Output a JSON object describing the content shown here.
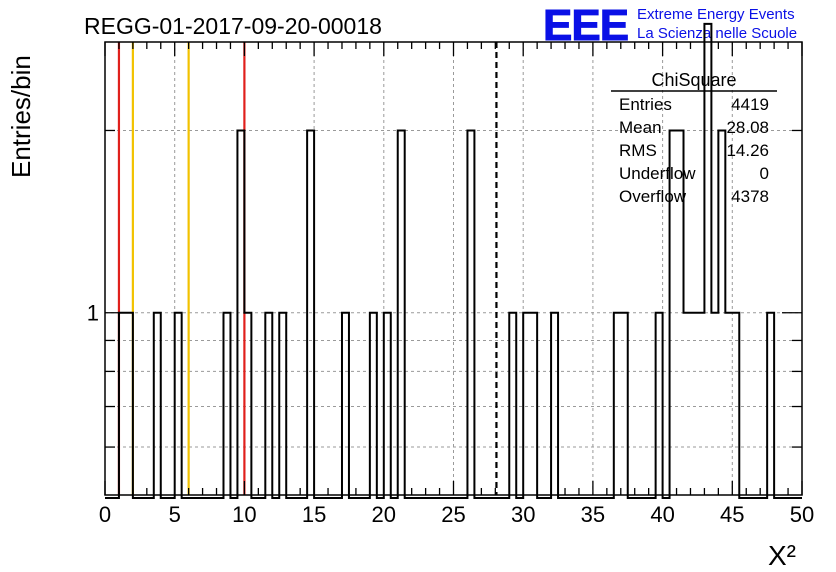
{
  "chart_data": {
    "type": "histogram",
    "title": "REGG-01-2017-09-20-00018",
    "xlabel": "X²",
    "ylabel": "Entries/bin",
    "xlim": [
      0,
      50
    ],
    "x_ticks": [
      0,
      5,
      10,
      15,
      20,
      25,
      30,
      35,
      40,
      45,
      50
    ],
    "y_scale": "log",
    "ylim": [
      0.5,
      2.8
    ],
    "y_tick_labels": [
      {
        "value": 1,
        "label": "1"
      }
    ],
    "grid": true,
    "bin_width": 0.5,
    "bins": [
      {
        "x": 1.0,
        "count": 1
      },
      {
        "x": 1.5,
        "count": 1
      },
      {
        "x": 3.5,
        "count": 1
      },
      {
        "x": 5.0,
        "count": 1
      },
      {
        "x": 8.5,
        "count": 1
      },
      {
        "x": 9.5,
        "count": 2
      },
      {
        "x": 10.0,
        "count": 1
      },
      {
        "x": 11.5,
        "count": 1
      },
      {
        "x": 12.5,
        "count": 1
      },
      {
        "x": 14.5,
        "count": 2
      },
      {
        "x": 17.0,
        "count": 1
      },
      {
        "x": 19.0,
        "count": 1
      },
      {
        "x": 20.0,
        "count": 1
      },
      {
        "x": 21.0,
        "count": 2
      },
      {
        "x": 26.0,
        "count": 2
      },
      {
        "x": 29.0,
        "count": 1
      },
      {
        "x": 30.0,
        "count": 1
      },
      {
        "x": 30.5,
        "count": 1
      },
      {
        "x": 32.0,
        "count": 1
      },
      {
        "x": 36.5,
        "count": 1
      },
      {
        "x": 37.0,
        "count": 1
      },
      {
        "x": 39.5,
        "count": 1
      },
      {
        "x": 40.5,
        "count": 2
      },
      {
        "x": 41.0,
        "count": 2
      },
      {
        "x": 41.5,
        "count": 1
      },
      {
        "x": 42.0,
        "count": 1
      },
      {
        "x": 42.5,
        "count": 1
      },
      {
        "x": 43.0,
        "count": 3
      },
      {
        "x": 43.5,
        "count": 1
      },
      {
        "x": 44.0,
        "count": 2
      },
      {
        "x": 44.5,
        "count": 1
      },
      {
        "x": 45.0,
        "count": 1
      },
      {
        "x": 47.5,
        "count": 1
      }
    ],
    "reference_lines": [
      {
        "x": 1,
        "color": "#e0201c",
        "style": "solid"
      },
      {
        "x": 2,
        "color": "#f2c200",
        "style": "solid"
      },
      {
        "x": 6,
        "color": "#f2c200",
        "style": "solid"
      },
      {
        "x": 10,
        "color": "#e0201c",
        "style": "solid"
      },
      {
        "x": 28.08,
        "color": "#000000",
        "style": "dashed"
      }
    ],
    "stats_box": {
      "title": "ChiSquare",
      "rows": [
        {
          "label": "Entries",
          "value": "4419"
        },
        {
          "label": "Mean",
          "value": "28.08"
        },
        {
          "label": "RMS",
          "value": "14.26"
        },
        {
          "label": "Underflow",
          "value": "0"
        },
        {
          "label": "Overflow",
          "value": "4378"
        }
      ],
      "placement": "top-right"
    }
  },
  "logo": {
    "text": "EEE",
    "line1": "Extreme Energy Events",
    "line2": "La Scienza nelle Scuole",
    "color": "#0a10e6"
  }
}
